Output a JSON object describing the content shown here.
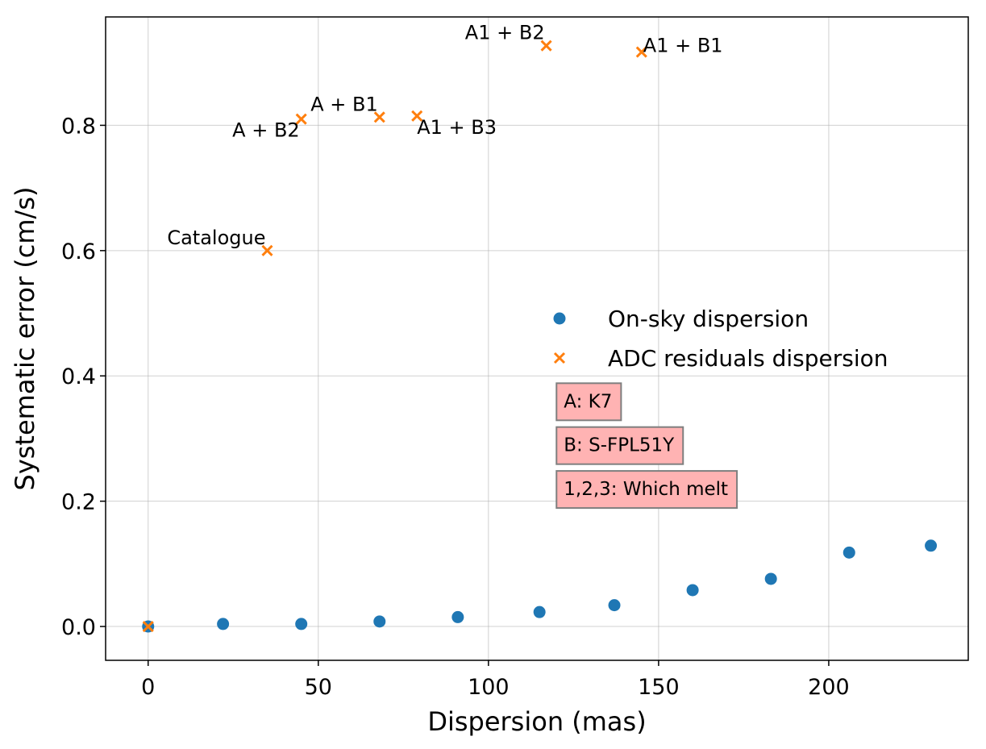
{
  "chart_data": {
    "type": "scatter",
    "title": "",
    "xlabel": "Dispersion (mas)",
    "ylabel": "Systematic error (cm/s)",
    "xlim": [
      -12.5,
      241
    ],
    "ylim": [
      -0.054,
      0.973
    ],
    "x_ticks": [
      0,
      50,
      100,
      150,
      200
    ],
    "y_ticks": [
      0.0,
      0.2,
      0.4,
      0.6,
      0.8
    ],
    "x_tick_labels": [
      "0",
      "50",
      "100",
      "150",
      "200"
    ],
    "y_tick_labels": [
      "0.0",
      "0.2",
      "0.4",
      "0.6",
      "0.8"
    ],
    "grid": true,
    "legend_position": "center-right",
    "series": [
      {
        "name": "On-sky dispersion",
        "marker": "circle",
        "color": "#1f77b4",
        "x": [
          0,
          22,
          45,
          68,
          91,
          115,
          137,
          160,
          183,
          206,
          230
        ],
        "y": [
          0.0,
          0.004,
          0.004,
          0.008,
          0.015,
          0.023,
          0.034,
          0.058,
          0.076,
          0.118,
          0.129
        ]
      },
      {
        "name": "ADC residuals dispersion",
        "marker": "x",
        "color": "#ff7f0e",
        "x": [
          0,
          35,
          45,
          68,
          79,
          117,
          145
        ],
        "y": [
          0.0,
          0.6,
          0.81,
          0.813,
          0.815,
          0.927,
          0.917
        ],
        "labels": [
          "",
          "Catalogue",
          "A + B2",
          "A + B1",
          "A1 + B3",
          "A1 + B2",
          "A1 + B1"
        ]
      }
    ],
    "annotations": [
      {
        "text": "Catalogue",
        "x": 35,
        "y": 0.6,
        "placement": "above-left"
      },
      {
        "text": "A + B2",
        "x": 45,
        "y": 0.81,
        "placement": "below-left"
      },
      {
        "text": "A + B1",
        "x": 68,
        "y": 0.813,
        "placement": "above-left"
      },
      {
        "text": "A1 + B3",
        "x": 79,
        "y": 0.815,
        "placement": "below-right"
      },
      {
        "text": "A1 + B2",
        "x": 117,
        "y": 0.927,
        "placement": "above-left"
      },
      {
        "text": "A1 + B1",
        "x": 145,
        "y": 0.917,
        "placement": "right"
      }
    ],
    "notes": [
      {
        "text": "A: K7",
        "x": 120,
        "y": 0.36
      },
      {
        "text": "B: S-FPL51Y",
        "x": 120,
        "y": 0.29
      },
      {
        "text": "1,2,3: Which melt",
        "x": 120,
        "y": 0.22
      }
    ],
    "note_box_color": "#ffb3b3"
  }
}
